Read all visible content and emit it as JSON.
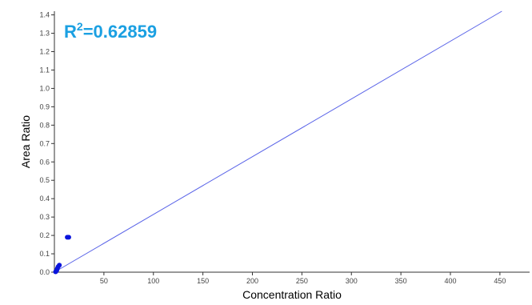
{
  "chart_data": {
    "type": "scatter",
    "title": "",
    "xlabel": "Concentration Ratio",
    "ylabel": "Area Ratio",
    "xlim": [
      0,
      480
    ],
    "ylim": [
      0,
      1.42
    ],
    "x_ticks": [
      50,
      100,
      150,
      200,
      250,
      300,
      350,
      400,
      450
    ],
    "y_ticks": [
      0.0,
      0.1,
      0.2,
      0.3,
      0.4,
      0.5,
      0.6,
      0.7,
      0.8,
      0.9,
      1.0,
      1.1,
      1.2,
      1.3,
      1.4
    ],
    "annotation": {
      "prefix": "R",
      "superscript": "2",
      "value": "=0.62859",
      "color": "#1ba0e2"
    },
    "points": [
      {
        "x": 1.2,
        "y": 0.002
      },
      {
        "x": 1.8,
        "y": 0.006
      },
      {
        "x": 2.5,
        "y": 0.012
      },
      {
        "x": 3.0,
        "y": 0.02
      },
      {
        "x": 3.8,
        "y": 0.03
      },
      {
        "x": 5.0,
        "y": 0.038
      },
      {
        "x": 13.0,
        "y": 0.19
      },
      {
        "x": 14.5,
        "y": 0.19
      }
    ],
    "fit_line": {
      "x": [
        0,
        452
      ],
      "y": [
        0.0,
        1.42
      ]
    },
    "point_color": "#0a14dc",
    "line_color": "#5a64e8",
    "grid": false
  }
}
